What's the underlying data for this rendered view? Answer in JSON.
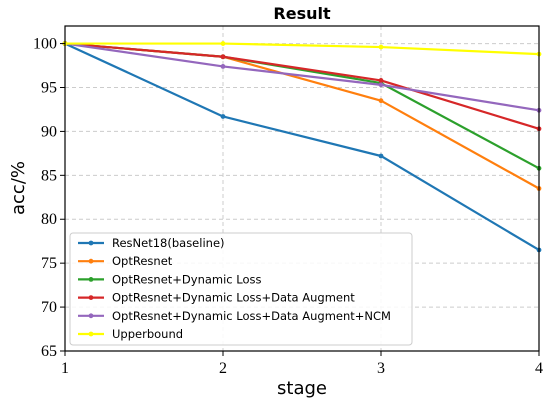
{
  "chart_data": {
    "type": "line",
    "title": "Result",
    "xlabel": "stage",
    "ylabel": "acc/%",
    "x": [
      1,
      2,
      3,
      4
    ],
    "xlim": [
      1,
      4
    ],
    "ylim": [
      65,
      102
    ],
    "xticks": [
      "1",
      "2",
      "3",
      "4"
    ],
    "yticks": [
      "65",
      "70",
      "75",
      "80",
      "85",
      "90",
      "95",
      "100"
    ],
    "grid": true,
    "legend_position": "lower-left",
    "series": [
      {
        "name": "ResNet18(baseline)",
        "color": "#1f77b4",
        "values": [
          100,
          91.7,
          87.2,
          76.5
        ]
      },
      {
        "name": "OptResnet",
        "color": "#ff7f0e",
        "values": [
          100,
          98.5,
          93.5,
          83.5
        ]
      },
      {
        "name": "OptResnet+Dynamic Loss",
        "color": "#2ca02c",
        "values": [
          100,
          98.5,
          95.5,
          85.8
        ]
      },
      {
        "name": "OptResnet+Dynamic Loss+Data Augment",
        "color": "#d62728",
        "values": [
          100,
          98.5,
          95.8,
          90.3
        ]
      },
      {
        "name": "OptResnet+Dynamic Loss+Data Augment+NCM",
        "color": "#9467bd",
        "values": [
          100,
          97.4,
          95.3,
          92.4
        ]
      },
      {
        "name": "Upperbound",
        "color": "#ffff00",
        "values": [
          100,
          100,
          99.6,
          98.8
        ]
      }
    ]
  }
}
